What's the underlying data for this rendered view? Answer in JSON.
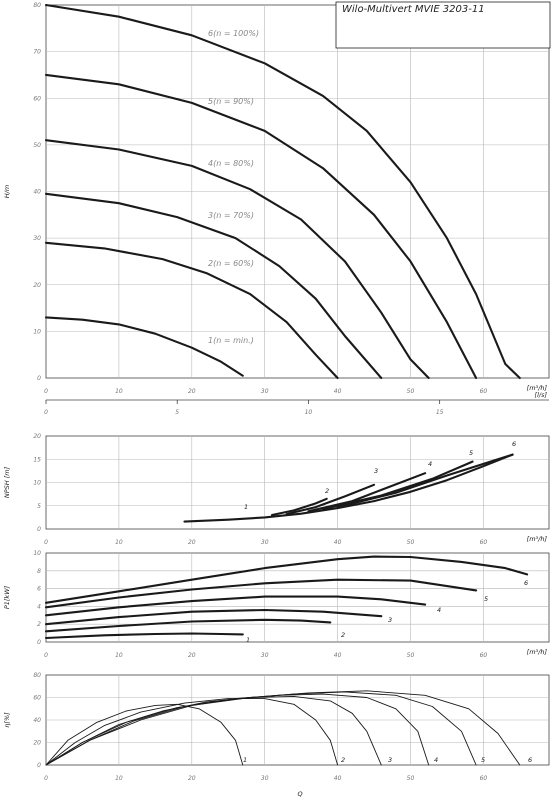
{
  "title": "Wilo-Multivert MVIE 3203-11",
  "chart_data": [
    {
      "id": "head",
      "type": "line",
      "ylabel": "H/m",
      "xlabel": "[m³/h]",
      "xlabel_secondary": "[l/s]",
      "xlim": [
        0,
        69
      ],
      "ylim": [
        0,
        80
      ],
      "x_ticks": [
        0,
        10,
        20,
        30,
        40,
        50,
        60
      ],
      "x_tick_labels": [
        "0",
        "10",
        "20",
        "30",
        "40",
        "50",
        "60"
      ],
      "y_ticks": [
        0,
        10,
        20,
        30,
        40,
        50,
        60,
        70,
        80
      ],
      "y_tick_labels": [
        "0",
        "10",
        "20",
        "30",
        "40",
        "50",
        "60",
        "70",
        "80"
      ],
      "x2_ticks": [
        0,
        5,
        10,
        15,
        20
      ],
      "x2_tick_labels": [
        "0",
        "5",
        "10",
        "15",
        "20"
      ],
      "grid": true,
      "series": [
        {
          "name": "1(n = min.)",
          "points": [
            [
              0,
              13
            ],
            [
              5,
              12.5
            ],
            [
              10,
              11.5
            ],
            [
              15,
              9.5
            ],
            [
              20,
              6.5
            ],
            [
              24,
              3.5
            ],
            [
              27,
              0.5
            ]
          ]
        },
        {
          "name": "2(n = 60%)",
          "points": [
            [
              0,
              29
            ],
            [
              8,
              27.8
            ],
            [
              16,
              25.5
            ],
            [
              22,
              22.5
            ],
            [
              28,
              18
            ],
            [
              33,
              12
            ],
            [
              37,
              5
            ],
            [
              40,
              0
            ]
          ]
        },
        {
          "name": "3(n = 70%)",
          "points": [
            [
              0,
              39.5
            ],
            [
              10,
              37.5
            ],
            [
              18,
              34.5
            ],
            [
              26,
              30
            ],
            [
              32,
              24
            ],
            [
              37,
              17
            ],
            [
              41,
              9
            ],
            [
              46,
              0
            ]
          ]
        },
        {
          "name": "4(n = 80%)",
          "points": [
            [
              0,
              51
            ],
            [
              10,
              49
            ],
            [
              20,
              45.5
            ],
            [
              28,
              40.5
            ],
            [
              35,
              34
            ],
            [
              41,
              25
            ],
            [
              46,
              14
            ],
            [
              50,
              4
            ],
            [
              52.5,
              0
            ]
          ]
        },
        {
          "name": "5(n = 90%)",
          "points": [
            [
              0,
              65
            ],
            [
              10,
              63
            ],
            [
              20,
              59
            ],
            [
              30,
              53
            ],
            [
              38,
              45
            ],
            [
              45,
              35
            ],
            [
              50,
              25
            ],
            [
              55,
              12
            ],
            [
              59,
              0
            ]
          ]
        },
        {
          "name": "6(n = 100%)",
          "points": [
            [
              0,
              80
            ],
            [
              10,
              77.5
            ],
            [
              20,
              73.5
            ],
            [
              30,
              67.5
            ],
            [
              38,
              60.5
            ],
            [
              44,
              53
            ],
            [
              50,
              42
            ],
            [
              55,
              30
            ],
            [
              59,
              18
            ],
            [
              63,
              3
            ],
            [
              65,
              0
            ]
          ]
        }
      ]
    },
    {
      "id": "npsh",
      "type": "line",
      "ylabel": "NPSH [m]",
      "xlabel": "[m³/h]",
      "xlim": [
        0,
        69
      ],
      "ylim": [
        0,
        20
      ],
      "x_ticks": [
        0,
        10,
        20,
        30,
        40,
        50,
        60
      ],
      "x_tick_labels": [
        "0",
        "10",
        "20",
        "30",
        "40",
        "50",
        "60"
      ],
      "y_ticks": [
        0,
        5,
        10,
        15,
        20
      ],
      "y_tick_labels": [
        "0",
        "5",
        "10",
        "15",
        "20"
      ],
      "grid": true,
      "series": [
        {
          "name": "1",
          "points": [
            [
              19,
              1.6
            ],
            [
              25,
              2
            ],
            [
              30,
              2.5
            ],
            [
              35,
              3.3
            ],
            [
              40,
              4.5
            ],
            [
              45,
              6
            ],
            [
              50,
              8
            ],
            [
              55,
              10.5
            ],
            [
              60,
              13.5
            ],
            [
              64,
              16
            ]
          ]
        },
        {
          "name": "2",
          "points": [
            [
              31,
              3
            ],
            [
              34,
              4
            ],
            [
              37,
              5.5
            ],
            [
              38.5,
              6.5
            ]
          ]
        },
        {
          "name": "3",
          "points": [
            [
              33,
              3.2
            ],
            [
              37,
              4.7
            ],
            [
              41,
              7
            ],
            [
              45,
              9.5
            ]
          ]
        },
        {
          "name": "4",
          "points": [
            [
              36,
              3.8
            ],
            [
              42,
              6
            ],
            [
              47,
              9
            ],
            [
              52,
              12
            ]
          ]
        },
        {
          "name": "5",
          "points": [
            [
              38,
              4.3
            ],
            [
              46,
              7.2
            ],
            [
              53,
              10.8
            ],
            [
              58.5,
              14.5
            ]
          ]
        },
        {
          "name": "6",
          "points": [
            [
              40,
              4.7
            ],
            [
              48,
              7.8
            ],
            [
              55,
              11.5
            ],
            [
              60,
              14
            ],
            [
              64,
              16
            ]
          ]
        }
      ],
      "series_labels": [
        "1",
        "2",
        "3",
        "4",
        "5",
        "6"
      ]
    },
    {
      "id": "power",
      "type": "line",
      "ylabel": "P1[kW]",
      "xlabel": "[m³/h]",
      "xlim": [
        0,
        69
      ],
      "ylim": [
        0,
        10
      ],
      "x_ticks": [
        0,
        10,
        20,
        30,
        40,
        50,
        60
      ],
      "x_tick_labels": [
        "0",
        "10",
        "20",
        "30",
        "40",
        "50",
        "60"
      ],
      "y_ticks": [
        0,
        2,
        4,
        6,
        8,
        10
      ],
      "y_tick_labels": [
        "0",
        "2",
        "4",
        "6",
        "8",
        "10"
      ],
      "grid": true,
      "series": [
        {
          "name": "1",
          "points": [
            [
              0,
              0.45
            ],
            [
              8,
              0.75
            ],
            [
              15,
              0.9
            ],
            [
              20,
              0.95
            ],
            [
              24,
              0.9
            ],
            [
              27,
              0.85
            ]
          ]
        },
        {
          "name": "2",
          "points": [
            [
              0,
              1.2
            ],
            [
              10,
              1.8
            ],
            [
              20,
              2.3
            ],
            [
              30,
              2.5
            ],
            [
              35,
              2.4
            ],
            [
              39,
              2.2
            ]
          ]
        },
        {
          "name": "3",
          "points": [
            [
              0,
              2
            ],
            [
              10,
              2.8
            ],
            [
              20,
              3.4
            ],
            [
              30,
              3.6
            ],
            [
              38,
              3.4
            ],
            [
              46,
              2.9
            ]
          ]
        },
        {
          "name": "4",
          "points": [
            [
              0,
              3
            ],
            [
              10,
              3.9
            ],
            [
              20,
              4.6
            ],
            [
              30,
              5.1
            ],
            [
              40,
              5.1
            ],
            [
              46,
              4.8
            ],
            [
              52,
              4.2
            ]
          ]
        },
        {
          "name": "5",
          "points": [
            [
              0,
              3.9
            ],
            [
              10,
              5
            ],
            [
              20,
              5.9
            ],
            [
              30,
              6.6
            ],
            [
              40,
              7
            ],
            [
              50,
              6.9
            ],
            [
              59,
              5.8
            ]
          ]
        },
        {
          "name": "6",
          "points": [
            [
              0,
              4.4
            ],
            [
              10,
              5.7
            ],
            [
              20,
              7
            ],
            [
              30,
              8.3
            ],
            [
              40,
              9.3
            ],
            [
              45,
              9.6
            ],
            [
              50,
              9.55
            ],
            [
              57,
              9
            ],
            [
              63,
              8.3
            ],
            [
              66,
              7.6
            ]
          ]
        }
      ],
      "series_labels": [
        "1",
        "2",
        "3",
        "4",
        "5",
        "6"
      ]
    },
    {
      "id": "efficiency",
      "type": "line",
      "ylabel": "η[%]",
      "xlabel": "Q",
      "xlim": [
        0,
        69
      ],
      "ylim": [
        0,
        80
      ],
      "x_ticks": [
        0,
        10,
        20,
        30,
        40,
        50,
        60
      ],
      "x_tick_labels": [
        "0",
        "10",
        "20",
        "30",
        "40",
        "50",
        "60"
      ],
      "y_ticks": [
        0,
        20,
        40,
        60,
        80
      ],
      "y_tick_labels": [
        "0",
        "20",
        "40",
        "60",
        "80"
      ],
      "grid": true,
      "series": [
        {
          "name": "1",
          "points": [
            [
              0,
              0
            ],
            [
              3,
              22
            ],
            [
              7,
              38
            ],
            [
              11,
              48
            ],
            [
              15,
              53
            ],
            [
              18,
              54
            ],
            [
              21,
              50
            ],
            [
              24,
              38
            ],
            [
              26,
              22
            ],
            [
              27,
              0
            ]
          ]
        },
        {
          "name": "2",
          "points": [
            [
              0,
              0
            ],
            [
              4,
              20
            ],
            [
              8,
              35
            ],
            [
              13,
              47
            ],
            [
              19,
              55
            ],
            [
              25,
              59
            ],
            [
              30,
              59
            ],
            [
              34,
              54
            ],
            [
              37,
              40
            ],
            [
              39,
              22
            ],
            [
              40,
              0
            ]
          ]
        },
        {
          "name": "3",
          "points": [
            [
              0,
              0
            ],
            [
              5,
              20
            ],
            [
              10,
              36
            ],
            [
              16,
              48
            ],
            [
              22,
              56
            ],
            [
              28,
              60
            ],
            [
              34,
              61
            ],
            [
              39,
              57
            ],
            [
              42,
              46
            ],
            [
              44,
              30
            ],
            [
              46,
              0
            ]
          ]
        },
        {
          "name": "4",
          "points": [
            [
              0,
              0
            ],
            [
              5,
              20
            ],
            [
              11,
              38
            ],
            [
              18,
              51
            ],
            [
              25,
              58
            ],
            [
              32,
              62
            ],
            [
              38,
              63
            ],
            [
              44,
              60
            ],
            [
              48,
              50
            ],
            [
              51,
              30
            ],
            [
              52.5,
              0
            ]
          ]
        },
        {
          "name": "5",
          "points": [
            [
              0,
              0
            ],
            [
              6,
              22
            ],
            [
              12,
              39
            ],
            [
              19,
              52
            ],
            [
              26,
              59
            ],
            [
              34,
              63
            ],
            [
              41,
              65
            ],
            [
              48,
              62
            ],
            [
              53,
              52
            ],
            [
              57,
              30
            ],
            [
              59,
              0
            ]
          ]
        },
        {
          "name": "6",
          "points": [
            [
              0,
              0
            ],
            [
              6,
              22
            ],
            [
              13,
              40
            ],
            [
              20,
              53
            ],
            [
              28,
              60
            ],
            [
              36,
              64
            ],
            [
              44,
              66
            ],
            [
              52,
              62
            ],
            [
              58,
              50
            ],
            [
              62,
              28
            ],
            [
              65,
              0
            ]
          ]
        }
      ],
      "series_labels": [
        "1",
        "2",
        "3",
        "4",
        "5",
        "6"
      ]
    }
  ]
}
